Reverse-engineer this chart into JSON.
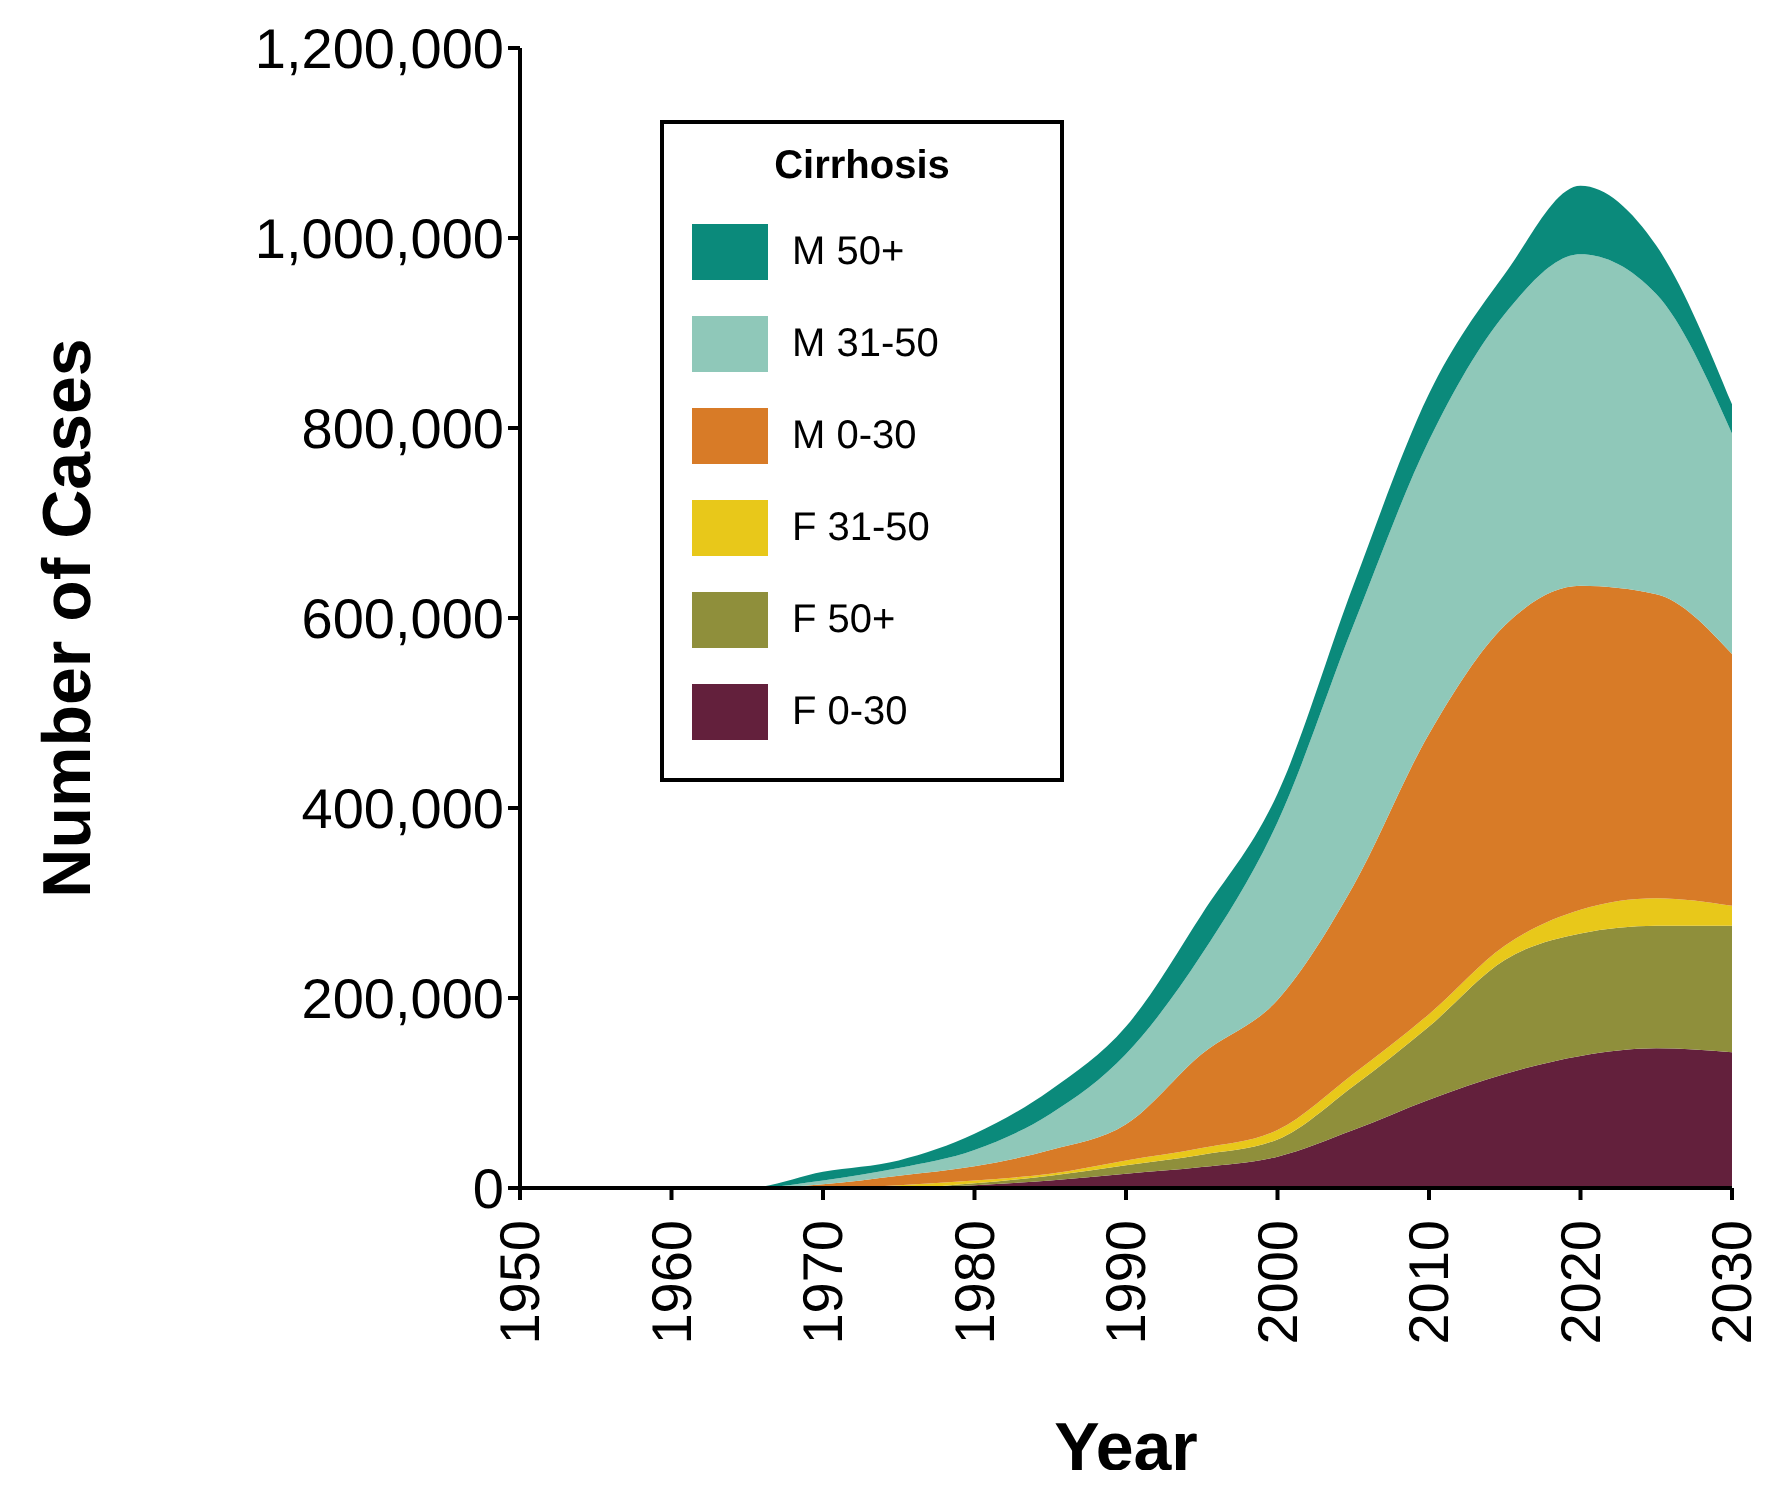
{
  "chart_data": {
    "type": "area",
    "stacked": true,
    "xlabel": "Year",
    "ylabel": "Number of Cases",
    "legend_title": "Cirrhosis",
    "legend": "top left",
    "grid": false,
    "x": [
      1950,
      1960,
      1965,
      1970,
      1975,
      1980,
      1985,
      1990,
      1995,
      2000,
      2005,
      2010,
      2015,
      2020,
      2025,
      2030
    ],
    "xlim": [
      1950,
      2030
    ],
    "xticks": [
      1950,
      1960,
      1970,
      1980,
      1990,
      2000,
      2010,
      2020,
      2030
    ],
    "ylim": [
      0,
      1200000
    ],
    "yticks": [
      0,
      {
        "value": 200000,
        "label": "200,000"
      },
      {
        "value": 400000,
        "label": "400,000"
      },
      {
        "value": 600000,
        "label": "600,000"
      },
      {
        "value": 800000,
        "label": "800,000"
      },
      {
        "value": 1000000,
        "label": "1,000,000"
      },
      {
        "value": 1200000,
        "label": "1,200,000"
      }
    ],
    "series": [
      {
        "name": "F 0-30",
        "color": "#63203c",
        "values": [
          0,
          0,
          0,
          0,
          0,
          3000,
          8000,
          15000,
          22000,
          33000,
          61000,
          93000,
          120000,
          139000,
          147000,
          143000
        ]
      },
      {
        "name": "F 50+",
        "color": "#8f8f3b",
        "values": [
          0,
          0,
          0,
          0,
          0,
          2000,
          5000,
          9000,
          13000,
          18000,
          46000,
          77000,
          120000,
          129000,
          129000,
          133000
        ]
      },
      {
        "name": "F 31-50",
        "color": "#e8c81a",
        "values": [
          0,
          0,
          0,
          0,
          3000,
          3000,
          2000,
          5000,
          7000,
          10000,
          13000,
          13000,
          15000,
          25000,
          29000,
          21000
        ]
      },
      {
        "name": "M 0-30",
        "color": "#d87b27",
        "values": [
          0,
          0,
          0,
          4000,
          10000,
          15000,
          25000,
          38000,
          99000,
          137000,
          198000,
          295000,
          337000,
          341000,
          320000,
          265000
        ]
      },
      {
        "name": "M 31-50",
        "color": "#8fc8b9",
        "values": [
          0,
          0,
          0,
          4000,
          8000,
          17000,
          38000,
          74000,
          105000,
          187000,
          274000,
          309000,
          328000,
          349000,
          316000,
          232000
        ]
      },
      {
        "name": "M 50+",
        "color": "#0b8a7b",
        "values": [
          0,
          0,
          0,
          9000,
          8000,
          17000,
          25000,
          29000,
          42000,
          30000,
          42000,
          49000,
          42000,
          72000,
          51000,
          31000
        ]
      }
    ]
  }
}
